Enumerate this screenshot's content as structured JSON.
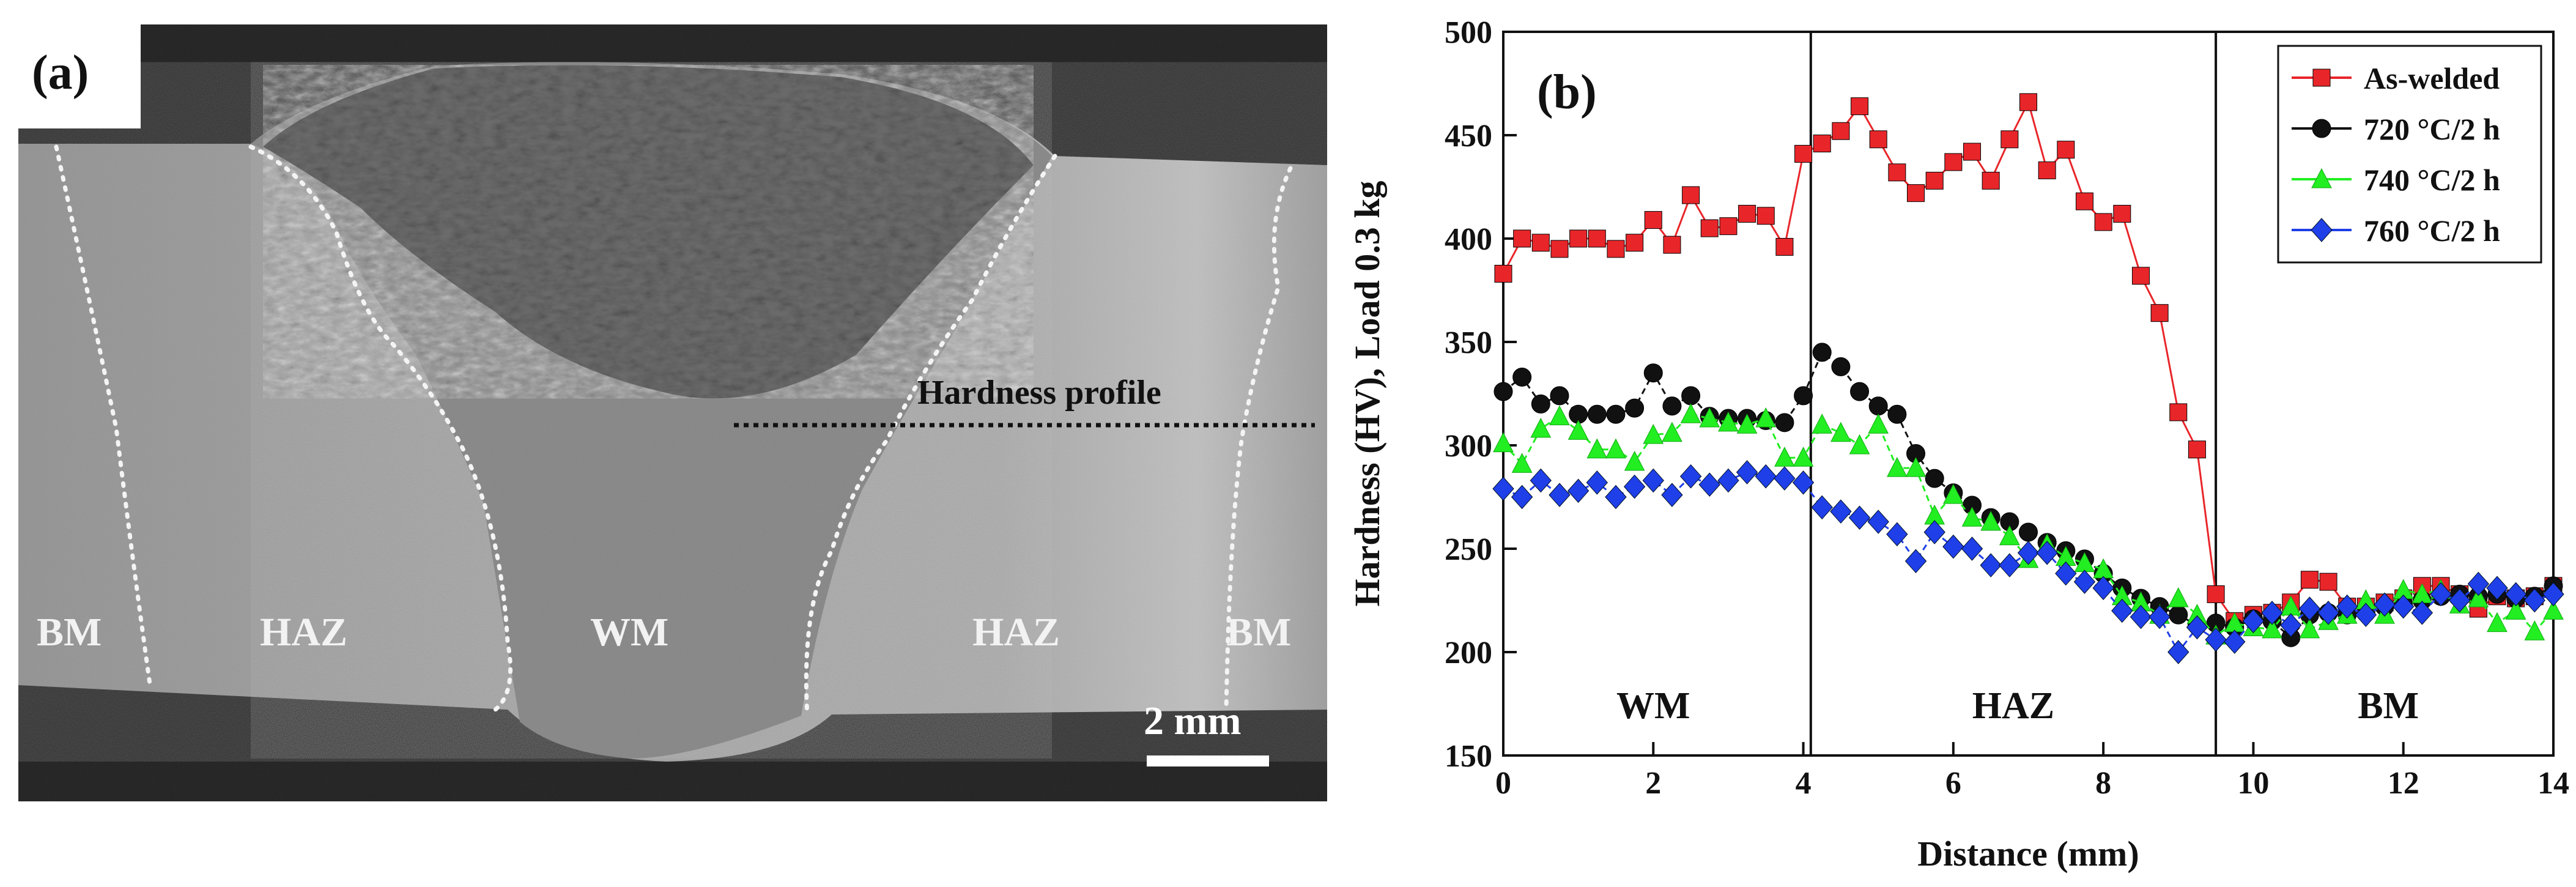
{
  "panel_a": {
    "label": "(a)",
    "profile_label": "Hardness profile",
    "zones": [
      "BM",
      "HAZ",
      "WM",
      "HAZ",
      "BM"
    ],
    "scale_bar": "2 mm"
  },
  "chart_data": {
    "type": "line",
    "panel_label": "(b)",
    "title": "",
    "xlabel": "Distance (mm)",
    "ylabel": "Hardness (HV), Load 0.3 kg",
    "xlim": [
      0,
      14
    ],
    "ylim": [
      150,
      500
    ],
    "xticks": [
      "0",
      "2",
      "4",
      "6",
      "8",
      "10",
      "12",
      "14"
    ],
    "yticks": [
      "150",
      "200",
      "250",
      "300",
      "350",
      "400",
      "450",
      "500"
    ],
    "boundaries": [
      4.1,
      9.5
    ],
    "zones": [
      {
        "name": "WM",
        "x": 2.0
      },
      {
        "name": "HAZ",
        "x": 6.8
      },
      {
        "name": "BM",
        "x": 11.8
      }
    ],
    "legend_position": "top-right",
    "series": [
      {
        "name": "As-welded",
        "color": "#e8262a",
        "marker": "square",
        "x": [
          0,
          0.25,
          0.5,
          0.75,
          1.0,
          1.25,
          1.5,
          1.75,
          2.0,
          2.25,
          2.5,
          2.75,
          3.0,
          3.25,
          3.5,
          3.75,
          4.0,
          4.25,
          4.5,
          4.75,
          5.0,
          5.25,
          5.5,
          5.75,
          6.0,
          6.25,
          6.5,
          6.75,
          7.0,
          7.25,
          7.5,
          7.75,
          8.0,
          8.25,
          8.5,
          8.75,
          9.0,
          9.25,
          9.5,
          9.75,
          10.0,
          10.25,
          10.5,
          10.75,
          11.0,
          11.25,
          11.5,
          11.75,
          12.0,
          12.25,
          12.5,
          12.75,
          13.0,
          13.25,
          13.5,
          13.75,
          14.0
        ],
        "values": [
          383,
          400,
          398,
          395,
          400,
          400,
          395,
          398,
          409,
          397,
          421,
          405,
          406,
          412,
          411,
          396,
          441,
          446,
          452,
          464,
          448,
          432,
          422,
          428,
          437,
          442,
          428,
          448,
          466,
          433,
          443,
          418,
          408,
          412,
          382,
          364,
          316,
          298,
          228,
          215,
          218,
          219,
          224,
          235,
          234,
          222,
          222,
          224,
          226,
          232,
          232,
          228,
          221,
          227,
          226,
          227,
          232
        ]
      },
      {
        "name": "720 °C/2 h",
        "color": "#111111",
        "marker": "circle",
        "x": [
          0,
          0.25,
          0.5,
          0.75,
          1.0,
          1.25,
          1.5,
          1.75,
          2.0,
          2.25,
          2.5,
          2.75,
          3.0,
          3.25,
          3.5,
          3.75,
          4.0,
          4.25,
          4.5,
          4.75,
          5.0,
          5.25,
          5.5,
          5.75,
          6.0,
          6.25,
          6.5,
          6.75,
          7.0,
          7.25,
          7.5,
          7.75,
          8.0,
          8.25,
          8.5,
          8.75,
          9.0,
          9.25,
          9.5,
          9.75,
          10.0,
          10.25,
          10.5,
          10.75,
          11.0,
          11.25,
          11.5,
          11.75,
          12.0,
          12.25,
          12.5,
          12.75,
          13.0,
          13.25,
          13.5,
          13.75,
          14.0
        ],
        "values": [
          326,
          333,
          320,
          324,
          315,
          315,
          315,
          318,
          335,
          319,
          324,
          314,
          313,
          313,
          312,
          311,
          324,
          345,
          338,
          326,
          319,
          315,
          296,
          284,
          277,
          271,
          265,
          263,
          258,
          253,
          249,
          245,
          238,
          231,
          226,
          222,
          218,
          213,
          214,
          212,
          216,
          215,
          207,
          218,
          219,
          218,
          219,
          222,
          223,
          225,
          227,
          228,
          227,
          228,
          226,
          227,
          232
        ]
      },
      {
        "name": "740 °C/2 h",
        "color": "#22ee22",
        "marker": "triangle",
        "x": [
          0,
          0.25,
          0.5,
          0.75,
          1.0,
          1.25,
          1.5,
          1.75,
          2.0,
          2.25,
          2.5,
          2.75,
          3.0,
          3.25,
          3.5,
          3.75,
          4.0,
          4.25,
          4.5,
          4.75,
          5.0,
          5.25,
          5.5,
          5.75,
          6.0,
          6.25,
          6.5,
          6.75,
          7.0,
          7.25,
          7.5,
          7.75,
          8.0,
          8.25,
          8.5,
          8.75,
          9.0,
          9.25,
          9.5,
          9.75,
          10.0,
          10.25,
          10.5,
          10.75,
          11.0,
          11.25,
          11.5,
          11.75,
          12.0,
          12.25,
          12.5,
          12.75,
          13.0,
          13.25,
          13.5,
          13.75,
          14.0
        ],
        "values": [
          301,
          291,
          308,
          314,
          307,
          298,
          298,
          292,
          305,
          306,
          315,
          313,
          311,
          310,
          313,
          294,
          294,
          310,
          306,
          300,
          310,
          289,
          289,
          266,
          276,
          265,
          263,
          256,
          245,
          252,
          246,
          243,
          240,
          227,
          224,
          218,
          226,
          218,
          208,
          214,
          212,
          211,
          222,
          211,
          215,
          218,
          225,
          218,
          230,
          228,
          230,
          223,
          226,
          214,
          220,
          210,
          220
        ]
      },
      {
        "name": "760 °C/2 h",
        "color": "#1f3fe8",
        "marker": "diamond",
        "x": [
          0,
          0.25,
          0.5,
          0.75,
          1.0,
          1.25,
          1.5,
          1.75,
          2.0,
          2.25,
          2.5,
          2.75,
          3.0,
          3.25,
          3.5,
          3.75,
          4.0,
          4.25,
          4.5,
          4.75,
          5.0,
          5.25,
          5.5,
          5.75,
          6.0,
          6.25,
          6.5,
          6.75,
          7.0,
          7.25,
          7.5,
          7.75,
          8.0,
          8.25,
          8.5,
          8.75,
          9.0,
          9.25,
          9.5,
          9.75,
          10.0,
          10.25,
          10.5,
          10.75,
          11.0,
          11.25,
          11.5,
          11.75,
          12.0,
          12.25,
          12.5,
          12.75,
          13.0,
          13.25,
          13.5,
          13.75,
          14.0
        ],
        "values": [
          279,
          275,
          283,
          276,
          278,
          282,
          275,
          280,
          283,
          276,
          285,
          281,
          283,
          287,
          285,
          284,
          282,
          270,
          268,
          265,
          263,
          257,
          244,
          258,
          251,
          250,
          242,
          242,
          248,
          248,
          238,
          234,
          231,
          220,
          217,
          217,
          200,
          212,
          206,
          205,
          215,
          219,
          213,
          221,
          219,
          222,
          218,
          223,
          222,
          219,
          228,
          225,
          233,
          231,
          228,
          225,
          228
        ]
      }
    ]
  }
}
